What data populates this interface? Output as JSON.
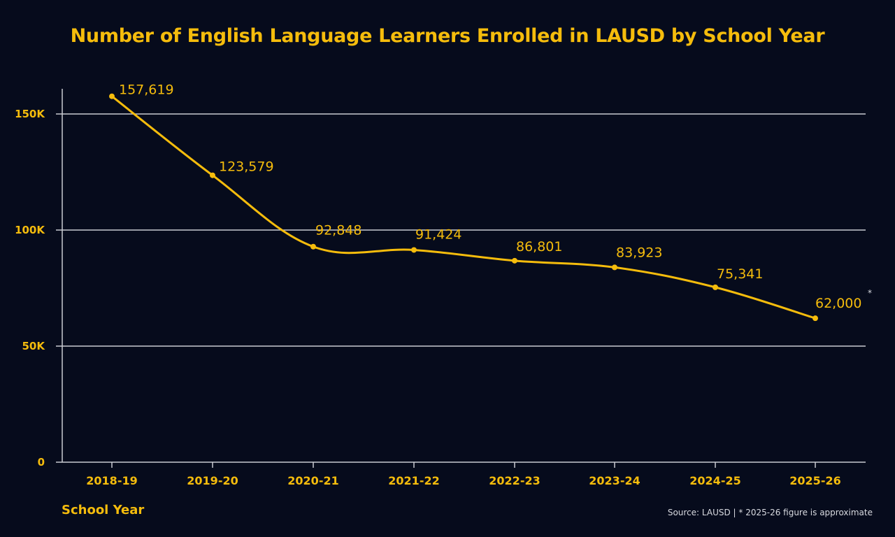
{
  "chart_data": {
    "type": "line",
    "title": "Number of English Language Learners Enrolled in LAUSD by School Year",
    "xlabel": "School Year",
    "ylabel": "",
    "categories": [
      "2018-19",
      "2019-20",
      "2020-21",
      "2021-22",
      "2022-23",
      "2023-24",
      "2024-25",
      "2025-26"
    ],
    "series": [
      {
        "name": "English Language Learners",
        "values": [
          157619,
          123579,
          92848,
          91424,
          86801,
          83923,
          75341,
          62000
        ],
        "labels": [
          "157,619",
          "123,579",
          "92,848",
          "91,424",
          "86,801",
          "83,923",
          "75,341",
          "62,000"
        ],
        "color": "#f5bc0c"
      }
    ],
    "ylim": [
      0,
      160000
    ],
    "yticks": [
      0,
      50000,
      100000,
      150000
    ],
    "ytick_labels": [
      "0",
      "50K",
      "100K",
      "150K"
    ],
    "grid": true,
    "legend": "none",
    "annotations": [
      {
        "point": "2025-26",
        "text": "*"
      }
    ],
    "footnote": "Source: LAUSD | * 2025-26 figure is approximate"
  },
  "colors": {
    "background": "#060b1c",
    "accent": "#f5bc0c",
    "grid": "#c9cbd2",
    "footnote": "#d8dae0"
  }
}
